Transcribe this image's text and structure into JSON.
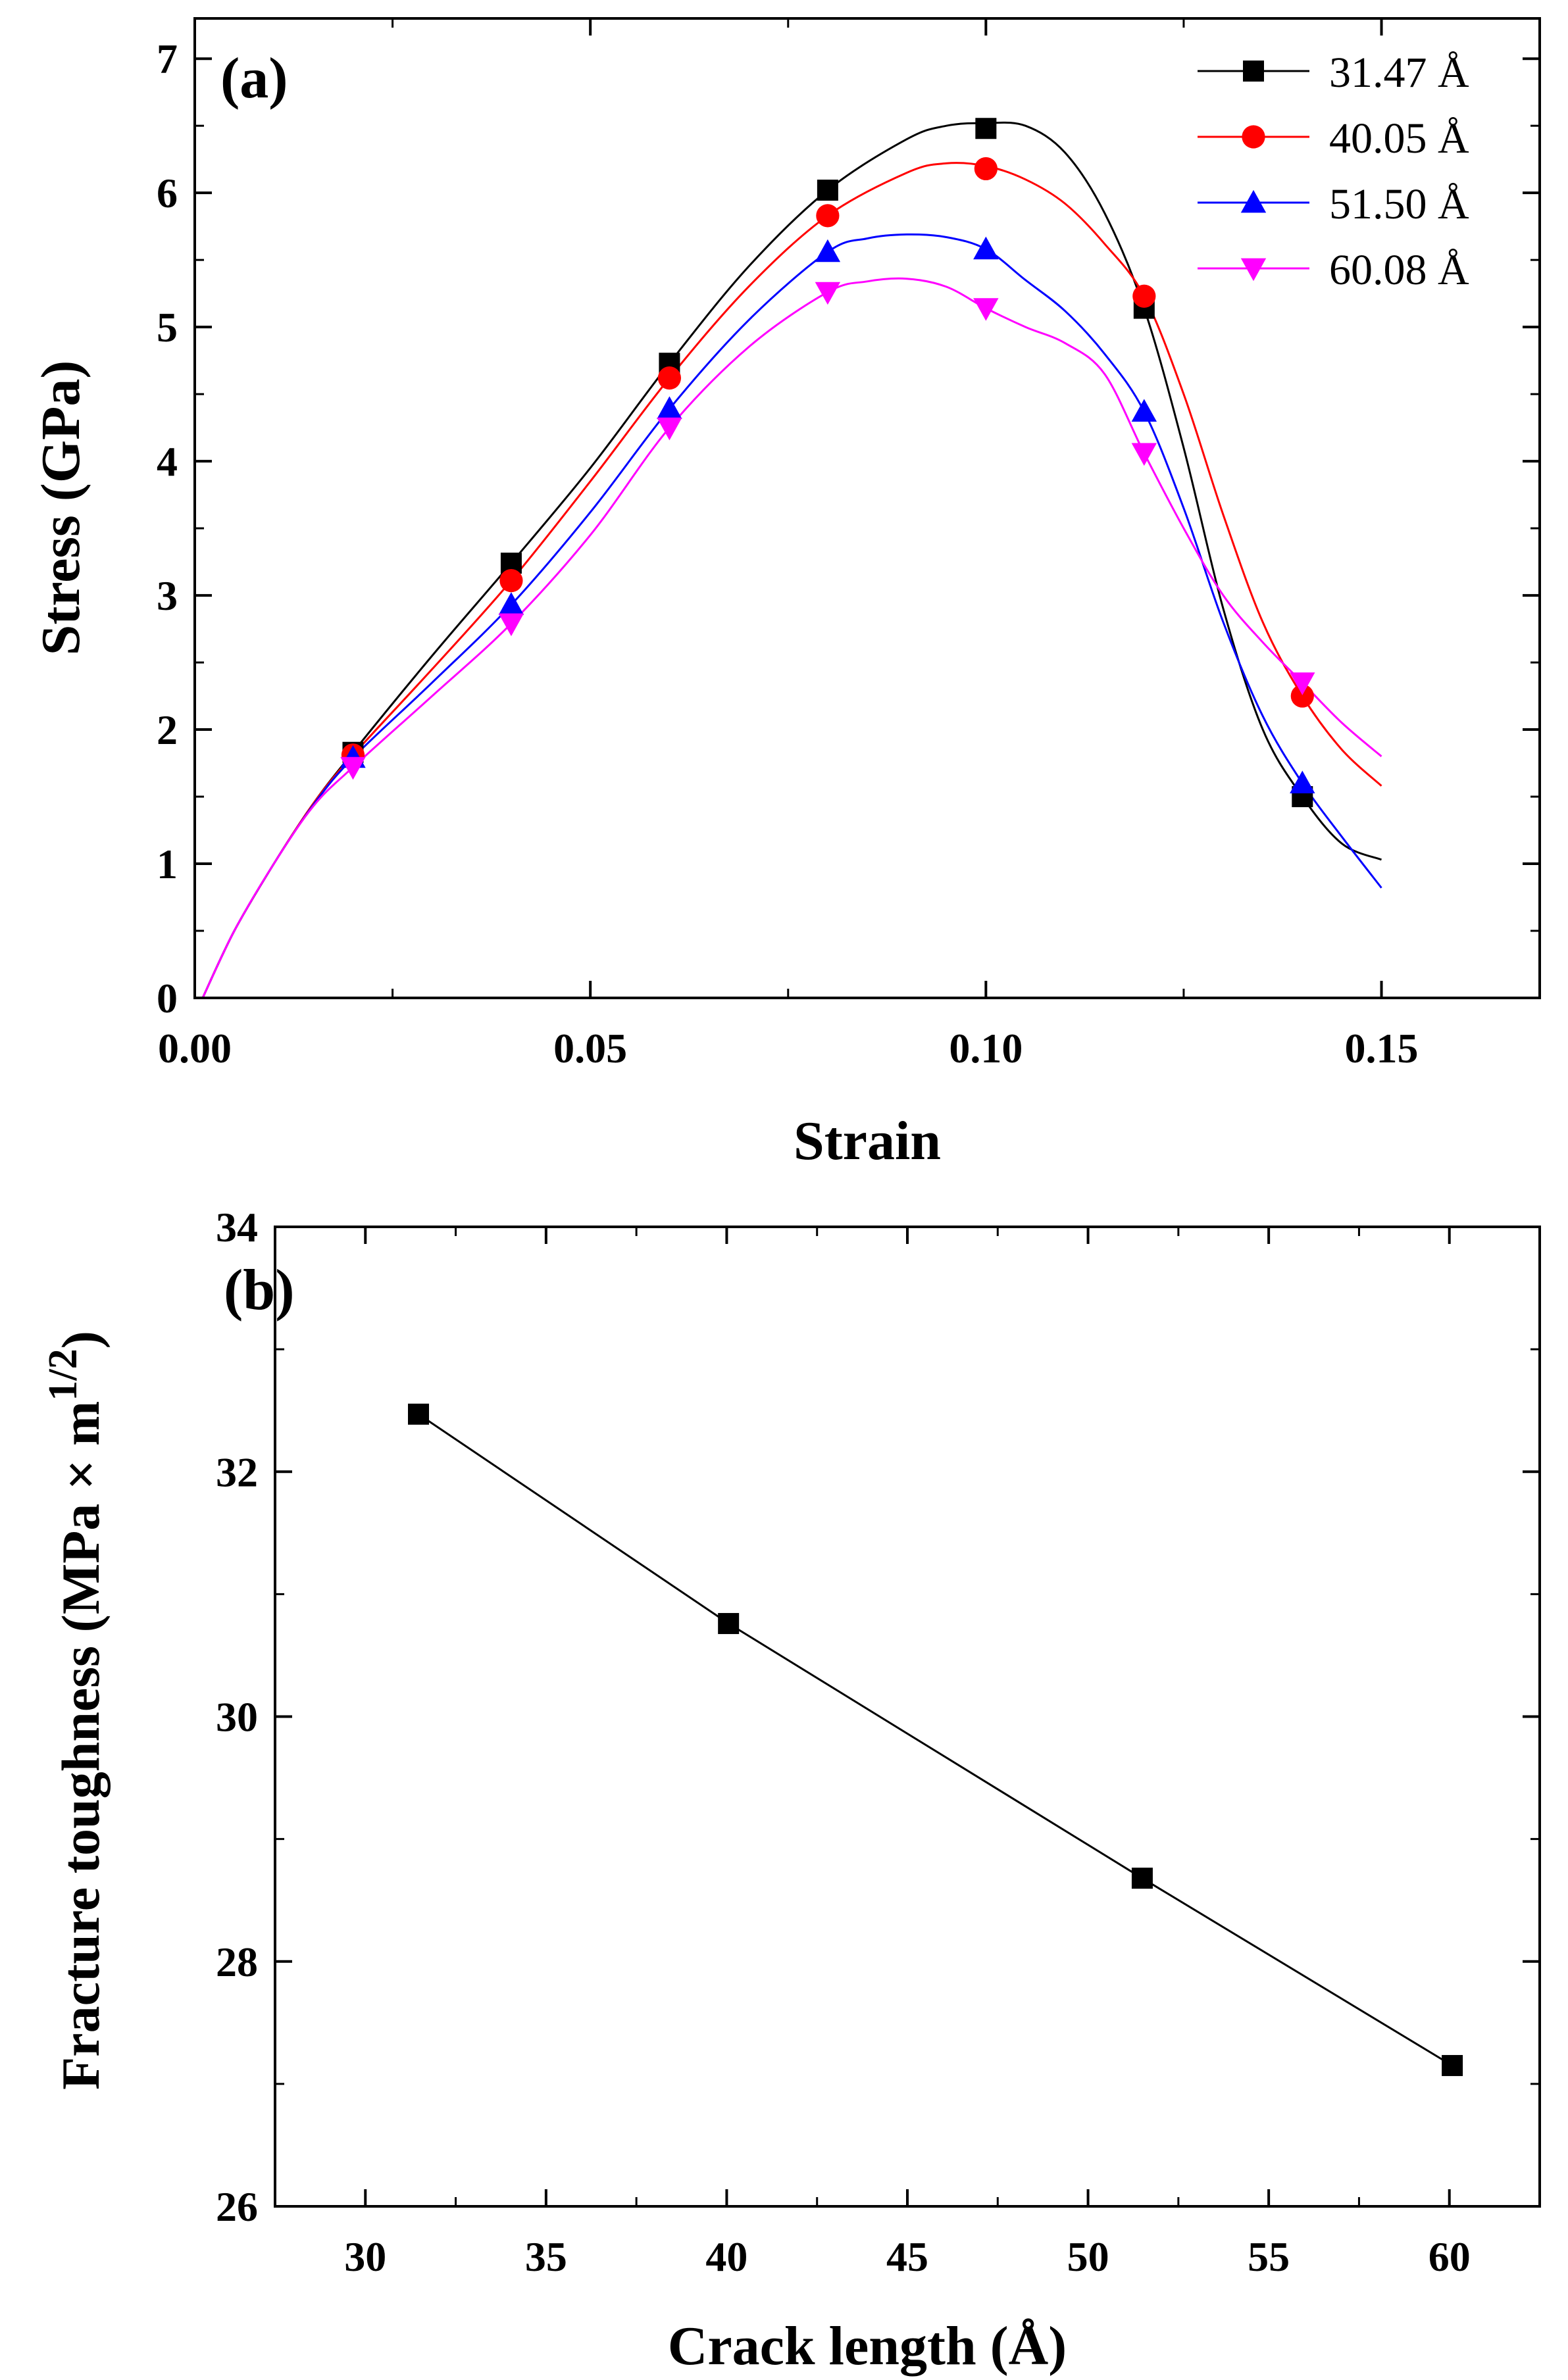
{
  "chart_data": [
    {
      "panel_label": "(a)",
      "type": "line",
      "xlabel": "Strain",
      "ylabel": "Stress (GPa)",
      "xlim": [
        0,
        0.17
      ],
      "ylim": [
        0,
        7.3
      ],
      "xticks": [
        0.0,
        0.05,
        0.1,
        0.15
      ],
      "xtick_labels": [
        "0.00",
        "0.05",
        "0.10",
        "0.15"
      ],
      "yticks": [
        0,
        1,
        2,
        3,
        4,
        5,
        6,
        7
      ],
      "ytick_labels": [
        "0",
        "1",
        "2",
        "3",
        "4",
        "5",
        "6",
        "7"
      ],
      "legend_position": "top-right",
      "series": [
        {
          "name": "31.47 Å",
          "color": "#000000",
          "marker": "square",
          "x": [
            0.02,
            0.04,
            0.06,
            0.08,
            0.1,
            0.12,
            0.14
          ],
          "y": [
            1.83,
            3.24,
            4.73,
            6.02,
            6.48,
            5.14,
            1.5
          ],
          "curve_x": [
            0.001,
            0.005,
            0.01,
            0.015,
            0.02,
            0.03,
            0.04,
            0.05,
            0.06,
            0.07,
            0.08,
            0.09,
            0.095,
            0.1,
            0.105,
            0.11,
            0.115,
            0.12,
            0.125,
            0.13,
            0.135,
            0.14,
            0.145,
            0.15
          ],
          "curve_y": [
            0.0,
            0.5,
            1.0,
            1.45,
            1.83,
            2.55,
            3.24,
            3.95,
            4.73,
            5.45,
            6.02,
            6.4,
            6.5,
            6.52,
            6.5,
            6.3,
            5.85,
            5.14,
            4.1,
            2.9,
            2.0,
            1.5,
            1.15,
            1.03
          ]
        },
        {
          "name": "40.05 Å",
          "color": "#ff0000",
          "marker": "circle",
          "x": [
            0.02,
            0.04,
            0.06,
            0.08,
            0.1,
            0.12,
            0.14
          ],
          "y": [
            1.81,
            3.11,
            4.62,
            5.83,
            6.18,
            5.23,
            2.25
          ],
          "curve_x": [
            0.001,
            0.005,
            0.01,
            0.015,
            0.02,
            0.03,
            0.04,
            0.05,
            0.06,
            0.07,
            0.08,
            0.09,
            0.095,
            0.1,
            0.105,
            0.11,
            0.115,
            0.12,
            0.125,
            0.13,
            0.135,
            0.14,
            0.145,
            0.15
          ],
          "curve_y": [
            0.0,
            0.5,
            1.0,
            1.45,
            1.81,
            2.45,
            3.11,
            3.85,
            4.62,
            5.3,
            5.83,
            6.15,
            6.22,
            6.2,
            6.1,
            5.92,
            5.62,
            5.23,
            4.5,
            3.6,
            2.8,
            2.25,
            1.85,
            1.58
          ]
        },
        {
          "name": "51.50 Å",
          "color": "#0000ff",
          "marker": "triangle-up",
          "x": [
            0.02,
            0.04,
            0.06,
            0.08,
            0.1,
            0.12,
            0.14
          ],
          "y": [
            1.79,
            2.93,
            4.39,
            5.56,
            5.58,
            4.37,
            1.6
          ],
          "curve_x": [
            0.001,
            0.005,
            0.01,
            0.015,
            0.02,
            0.03,
            0.04,
            0.05,
            0.06,
            0.07,
            0.08,
            0.085,
            0.09,
            0.095,
            0.1,
            0.105,
            0.11,
            0.115,
            0.12,
            0.125,
            0.13,
            0.135,
            0.14,
            0.145,
            0.15
          ],
          "curve_y": [
            0.0,
            0.5,
            1.0,
            1.44,
            1.79,
            2.35,
            2.93,
            3.62,
            4.39,
            5.05,
            5.56,
            5.66,
            5.69,
            5.67,
            5.58,
            5.35,
            5.12,
            4.8,
            4.37,
            3.65,
            2.8,
            2.1,
            1.6,
            1.2,
            0.82
          ]
        },
        {
          "name": "60.08 Å",
          "color": "#ff00ff",
          "marker": "triangle-down",
          "x": [
            0.02,
            0.04,
            0.06,
            0.08,
            0.1,
            0.12,
            0.14
          ],
          "y": [
            1.72,
            2.79,
            4.25,
            5.26,
            5.14,
            4.06,
            2.35
          ],
          "curve_x": [
            0.001,
            0.005,
            0.01,
            0.015,
            0.02,
            0.03,
            0.04,
            0.05,
            0.06,
            0.07,
            0.08,
            0.085,
            0.09,
            0.095,
            0.1,
            0.105,
            0.11,
            0.115,
            0.12,
            0.125,
            0.13,
            0.135,
            0.14,
            0.145,
            0.15
          ],
          "curve_y": [
            0.0,
            0.5,
            1.0,
            1.43,
            1.72,
            2.25,
            2.79,
            3.45,
            4.25,
            4.85,
            5.26,
            5.34,
            5.36,
            5.3,
            5.14,
            5.0,
            4.88,
            4.65,
            4.06,
            3.5,
            3.0,
            2.65,
            2.35,
            2.05,
            1.8
          ]
        }
      ]
    },
    {
      "panel_label": "(b)",
      "type": "line",
      "xlabel": "Crack length (Å)",
      "ylabel_main": "Fracture toughness (MPa × m",
      "ylabel_sup": "1/2",
      "ylabel_close": ")",
      "xlim": [
        27.5,
        62.5
      ],
      "ylim": [
        26,
        34
      ],
      "xticks": [
        30,
        35,
        40,
        45,
        50,
        55,
        60
      ],
      "xtick_labels": [
        "30",
        "35",
        "40",
        "45",
        "50",
        "55",
        "60"
      ],
      "yticks": [
        26,
        28,
        30,
        32,
        34
      ],
      "ytick_labels": [
        "26",
        "28",
        "30",
        "32",
        "34"
      ],
      "series": [
        {
          "name": "Fracture toughness",
          "color": "#000000",
          "marker": "square",
          "x": [
            31.47,
            40.05,
            51.5,
            60.08
          ],
          "y": [
            32.47,
            30.76,
            28.68,
            27.15
          ]
        }
      ]
    }
  ]
}
